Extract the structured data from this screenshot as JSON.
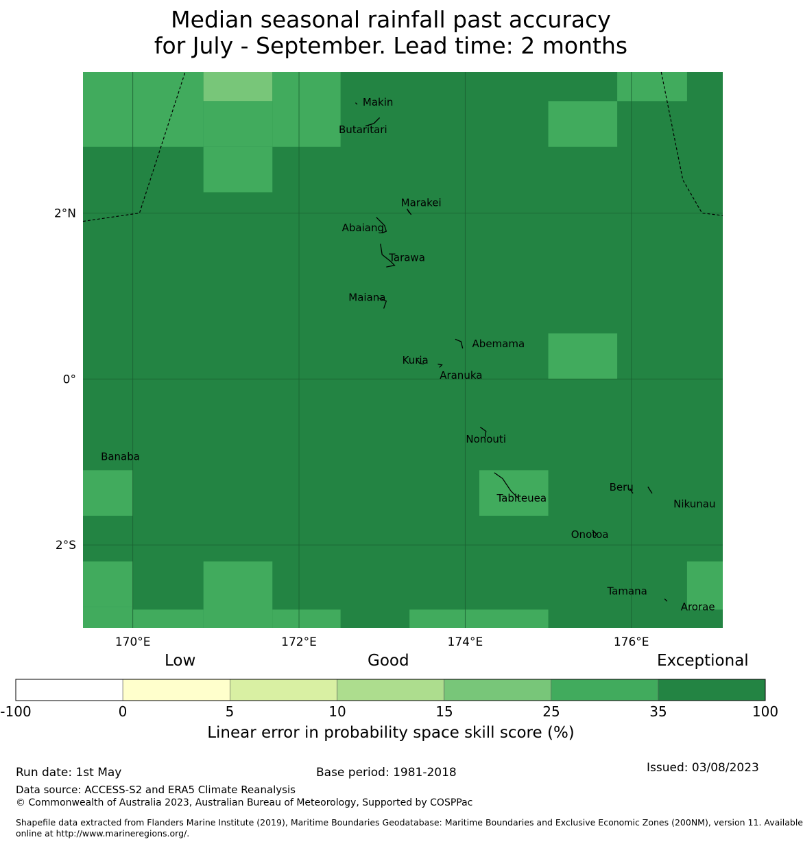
{
  "title": {
    "line1": "Median seasonal rainfall past accuracy",
    "line2": "for July - September. Lead time: 2 months"
  },
  "map": {
    "lon_range": [
      169.4,
      177.1
    ],
    "lat_range": [
      -3.0,
      3.7
    ],
    "lon_ticks": [
      {
        "value": 170,
        "label": "170°E"
      },
      {
        "value": 172,
        "label": "172°E"
      },
      {
        "value": 174,
        "label": "174°E"
      },
      {
        "value": 176,
        "label": "176°E"
      }
    ],
    "lat_ticks": [
      {
        "value": 2,
        "label": "2°N"
      },
      {
        "value": 0,
        "label": "0°"
      },
      {
        "value": -2,
        "label": "2°S"
      }
    ],
    "colors": {
      "exceptional": "#238443",
      "high": "#41ab5d",
      "mid": "#78c679",
      "grid_line": "#1a5e30"
    },
    "skill_cells_non_exceptional": [
      {
        "lon": [
          169.4,
          170.0
        ],
        "lat": [
          2.8,
          3.7
        ],
        "class": "high"
      },
      {
        "lon": [
          170.0,
          170.85
        ],
        "lat": [
          2.8,
          3.7
        ],
        "class": "high"
      },
      {
        "lon": [
          170.85,
          171.68
        ],
        "lat": [
          3.35,
          3.7
        ],
        "class": "mid"
      },
      {
        "lon": [
          170.85,
          171.68
        ],
        "lat": [
          2.8,
          3.35
        ],
        "class": "high"
      },
      {
        "lon": [
          171.68,
          172.5
        ],
        "lat": [
          2.8,
          3.7
        ],
        "class": "high"
      },
      {
        "lon": [
          170.85,
          171.68
        ],
        "lat": [
          2.25,
          2.8
        ],
        "class": "high"
      },
      {
        "lon": [
          175.0,
          175.83
        ],
        "lat": [
          2.8,
          3.35
        ],
        "class": "high"
      },
      {
        "lon": [
          175.83,
          176.67
        ],
        "lat": [
          3.35,
          3.7
        ],
        "class": "high"
      },
      {
        "lon": [
          175.0,
          175.83
        ],
        "lat": [
          0.0,
          0.55
        ],
        "class": "high"
      },
      {
        "lon": [
          169.4,
          170.0
        ],
        "lat": [
          -1.65,
          -1.1
        ],
        "class": "high"
      },
      {
        "lon": [
          174.17,
          175.0
        ],
        "lat": [
          -1.65,
          -1.1
        ],
        "class": "high"
      },
      {
        "lon": [
          169.4,
          170.0
        ],
        "lat": [
          -2.75,
          -2.2
        ],
        "class": "high"
      },
      {
        "lon": [
          169.4,
          170.0
        ],
        "lat": [
          -3.0,
          -2.75
        ],
        "class": "high"
      },
      {
        "lon": [
          170.0,
          170.85
        ],
        "lat": [
          -3.0,
          -2.78
        ],
        "class": "high"
      },
      {
        "lon": [
          170.85,
          171.68
        ],
        "lat": [
          -3.0,
          -2.2
        ],
        "class": "high"
      },
      {
        "lon": [
          171.68,
          172.5
        ],
        "lat": [
          -3.0,
          -2.78
        ],
        "class": "high"
      },
      {
        "lon": [
          173.33,
          175.0
        ],
        "lat": [
          -3.0,
          -2.78
        ],
        "class": "high"
      },
      {
        "lon": [
          176.67,
          177.1
        ],
        "lat": [
          -2.78,
          -2.2
        ],
        "class": "high"
      }
    ],
    "islands": [
      {
        "name": "Makin",
        "lon": 172.95,
        "lat": 3.33
      },
      {
        "name": "Butaritari",
        "lon": 172.77,
        "lat": 3.0
      },
      {
        "name": "Marakei",
        "lon": 173.47,
        "lat": 2.12
      },
      {
        "name": "Abaiang",
        "lon": 172.77,
        "lat": 1.82
      },
      {
        "name": "Tarawa",
        "lon": 173.3,
        "lat": 1.46
      },
      {
        "name": "Maiana",
        "lon": 172.82,
        "lat": 0.98
      },
      {
        "name": "Abemama",
        "lon": 174.4,
        "lat": 0.42
      },
      {
        "name": "Kuria",
        "lon": 173.4,
        "lat": 0.22
      },
      {
        "name": "Aranuka",
        "lon": 173.95,
        "lat": 0.04
      },
      {
        "name": "Nonouti",
        "lon": 174.25,
        "lat": -0.73
      },
      {
        "name": "Banaba",
        "lon": 169.85,
        "lat": -0.94
      },
      {
        "name": "Tabiteuea",
        "lon": 174.68,
        "lat": -1.44
      },
      {
        "name": "Beru",
        "lon": 175.88,
        "lat": -1.31
      },
      {
        "name": "Nikunau",
        "lon": 176.76,
        "lat": -1.51
      },
      {
        "name": "Onotoa",
        "lon": 175.5,
        "lat": -1.88
      },
      {
        "name": "Tamana",
        "lon": 175.95,
        "lat": -2.56
      },
      {
        "name": "Arorae",
        "lon": 176.8,
        "lat": -2.75
      }
    ],
    "boundary_west": [
      [
        169.4,
        1.9
      ],
      [
        170.08,
        2.0
      ],
      [
        170.63,
        3.7
      ]
    ],
    "boundary_east": [
      [
        176.36,
        3.7
      ],
      [
        176.62,
        2.4
      ],
      [
        176.85,
        2.0
      ],
      [
        177.1,
        1.97
      ]
    ]
  },
  "colorbar": {
    "categories": [
      {
        "label": "Low"
      },
      {
        "label": "Good"
      },
      {
        "label": "Exceptional"
      }
    ],
    "ticks": [
      "-100",
      "0",
      "5",
      "10",
      "15",
      "25",
      "35",
      "100"
    ],
    "colors": [
      "#ffffff",
      "#ffffcc",
      "#d9f0a3",
      "#addd8e",
      "#78c679",
      "#41ab5d",
      "#238443"
    ],
    "label": "Linear error in probability space skill score (%)"
  },
  "footer": {
    "run_date": "Run date: 1st May",
    "base_period": "Base period: 1981-2018",
    "issued": "Issued: 03/08/2023",
    "data_source": "Data source: ACCESS-S2 and ERA5 Climate Reanalysis",
    "copyright": "© Commonwealth of Australia 2023, Australian Bureau of Meteorology, Supported by COSPPac",
    "shapefile_line1": "Shapefile data extracted from Flanders Marine Institute (2019), Maritime Boundaries Geodatabase: Maritime Boundaries and Exclusive Economic Zones (200NM), version 11. Available",
    "shapefile_line2": "online at http://www.marineregions.org/."
  }
}
